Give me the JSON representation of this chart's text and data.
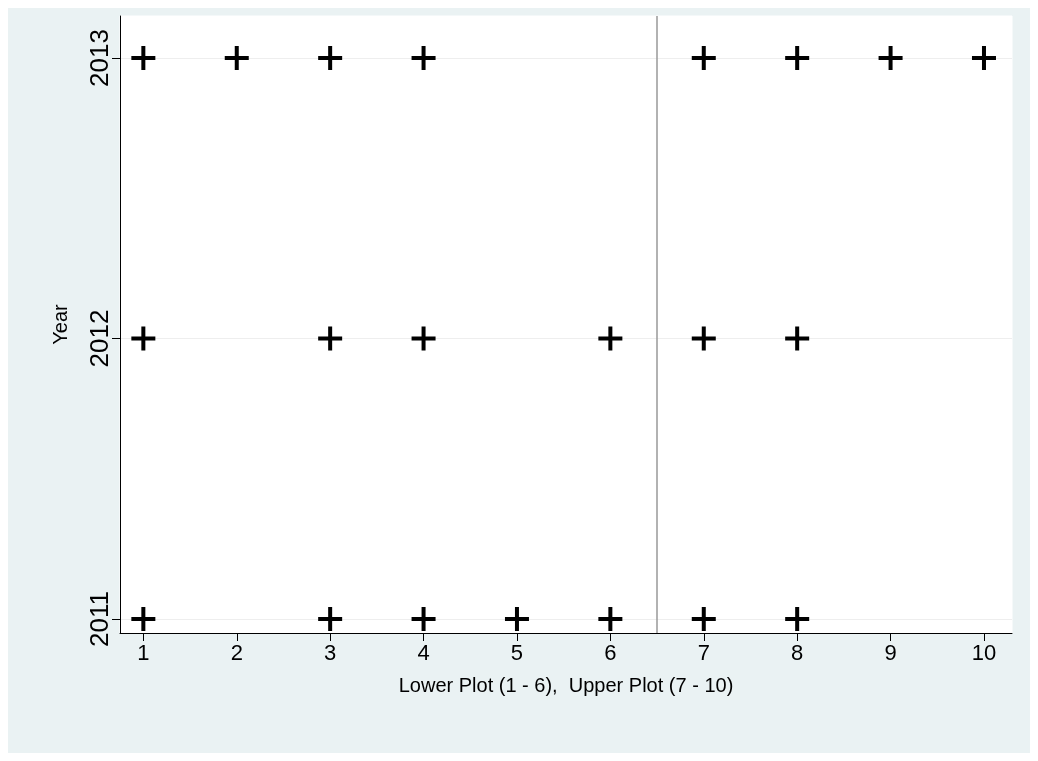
{
  "chart_data": {
    "type": "scatter",
    "xlabel": "Lower Plot (1 - 6),  Upper Plot (7 - 10)",
    "ylabel": "Year",
    "x": [
      1,
      2,
      3,
      4,
      7,
      8,
      9,
      10,
      1,
      3,
      4,
      6,
      7,
      8,
      1,
      3,
      4,
      5,
      6,
      7,
      8
    ],
    "values": [
      2013,
      2013,
      2013,
      2013,
      2013,
      2013,
      2013,
      2013,
      2012,
      2012,
      2012,
      2012,
      2012,
      2012,
      2011,
      2011,
      2011,
      2011,
      2011,
      2011,
      2011
    ],
    "color": "#000000",
    "marker": "cross",
    "grid": "y",
    "xlim": [
      0.75,
      10.3
    ],
    "xticks": [
      1,
      2,
      3,
      4,
      5,
      6,
      7,
      8,
      9,
      10
    ],
    "ylim": [
      2010.95,
      2013.15
    ],
    "yticks": [
      2011,
      2012,
      2013
    ],
    "ref_lines": [
      {
        "axis": "x",
        "value": 6.5,
        "color": "#999999"
      }
    ]
  }
}
